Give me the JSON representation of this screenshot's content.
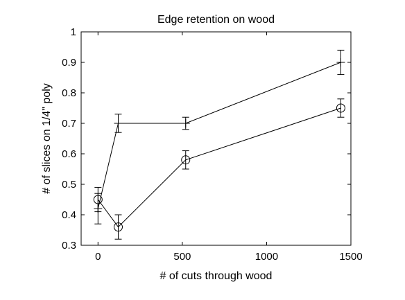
{
  "chart_data": {
    "type": "line",
    "title": "Edge retention on wood",
    "xlabel": "# of cuts through wood",
    "ylabel": "# of slices on 1/4\" poly",
    "xlim": [
      -100,
      1500
    ],
    "ylim": [
      0.3,
      1.0
    ],
    "xticks": [
      0,
      500,
      1000,
      1500
    ],
    "yticks": [
      0.3,
      0.4,
      0.5,
      0.6,
      0.7,
      0.8,
      0.9,
      1.0
    ],
    "xtick_labels": [
      "0",
      "500",
      "1000",
      "1500"
    ],
    "ytick_labels": [
      "0.3",
      "0.4",
      "0.5",
      "0.6",
      "0.7",
      "0.8",
      "0.9",
      "1"
    ],
    "grid": false,
    "series": [
      {
        "marker": "plus",
        "x": [
          0,
          120,
          520,
          1440
        ],
        "y": [
          0.42,
          0.7,
          0.7,
          0.9
        ],
        "error": [
          0.05,
          0.03,
          0.02,
          0.04
        ]
      },
      {
        "marker": "circle",
        "x": [
          0,
          120,
          520,
          1440
        ],
        "y": [
          0.45,
          0.36,
          0.58,
          0.75
        ],
        "error": [
          0.04,
          0.04,
          0.03,
          0.03
        ]
      }
    ]
  }
}
